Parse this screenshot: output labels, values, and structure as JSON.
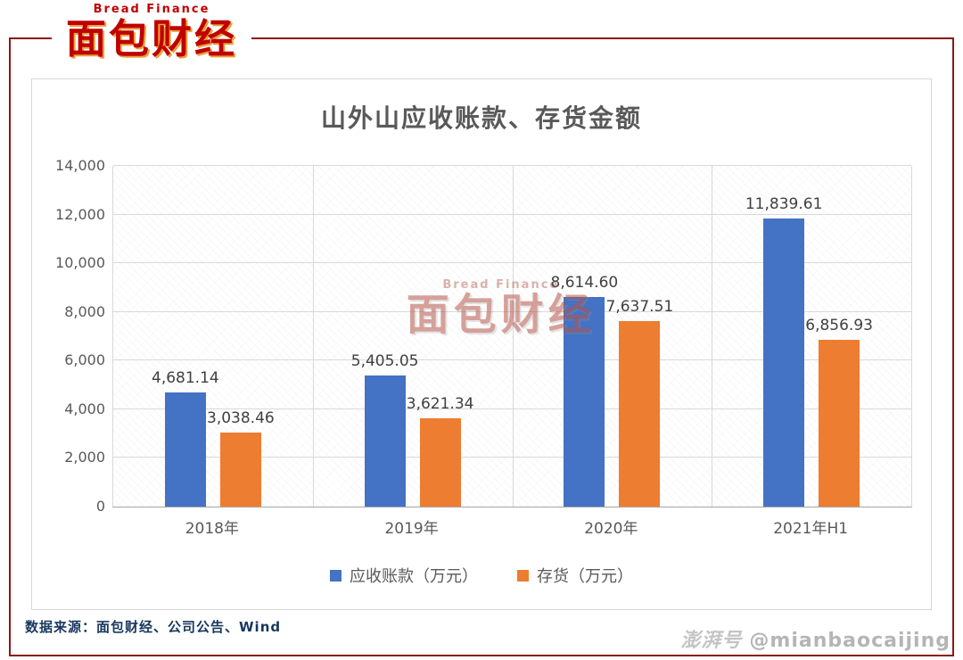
{
  "brand": {
    "logo_subtitle": "Bread Finance",
    "logo_title": "面包财经"
  },
  "watermark_center": {
    "subtitle": "Bread Finance",
    "title": "面包财经"
  },
  "chart_data": {
    "type": "bar",
    "title": "山外山应收账款、存货金额",
    "categories": [
      "2018年",
      "2019年",
      "2020年",
      "2021年H1"
    ],
    "series": [
      {
        "name": "应收账款（万元）",
        "color": "#4472C4",
        "values": [
          4681.14,
          5405.05,
          8614.6,
          11839.61
        ],
        "labels": [
          "4,681.14",
          "5,405.05",
          "8,614.60",
          "11,839.61"
        ]
      },
      {
        "name": "存货（万元）",
        "color": "#ED7D31",
        "values": [
          3038.46,
          3621.34,
          7637.51,
          6856.93
        ],
        "labels": [
          "3,038.46",
          "3,621.34",
          "7,637.51",
          "6,856.93"
        ]
      }
    ],
    "ylim": [
      0,
      14000
    ],
    "ytick_step": 2000,
    "ytick_labels": [
      "0",
      "2,000",
      "4,000",
      "6,000",
      "8,000",
      "10,000",
      "12,000",
      "14,000"
    ],
    "grid": true,
    "legend_position": "bottom"
  },
  "footer": {
    "source": "数据来源：面包财经、公司公告、Wind"
  },
  "footer_watermark": {
    "platform": "澎湃号",
    "handle": "@mianbaocaijing"
  },
  "colors": {
    "frame_red": "#8C1818",
    "brand_red": "#C00000",
    "series_blue": "#4472C4",
    "series_orange": "#ED7D31"
  }
}
